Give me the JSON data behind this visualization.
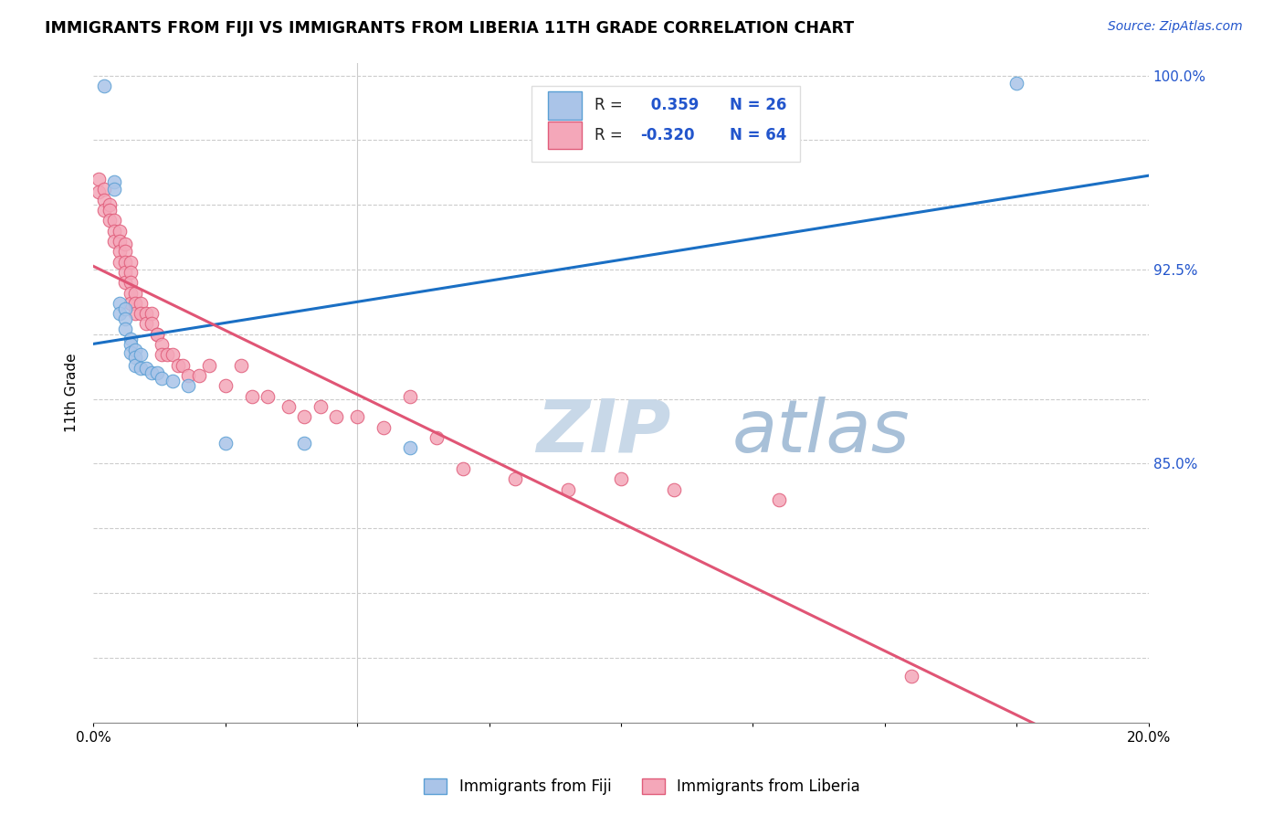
{
  "title": "IMMIGRANTS FROM FIJI VS IMMIGRANTS FROM LIBERIA 11TH GRADE CORRELATION CHART",
  "source": "Source: ZipAtlas.com",
  "ylabel": "11th Grade",
  "xmin": 0.0,
  "xmax": 0.2,
  "ymin": 0.75,
  "ymax": 1.005,
  "yticks": [
    0.775,
    0.8,
    0.825,
    0.85,
    0.875,
    0.9,
    0.925,
    0.95,
    0.975,
    1.0
  ],
  "ytick_labels": [
    "",
    "",
    "",
    "85.0%",
    "",
    "",
    "92.5%",
    "",
    "",
    "100.0%"
  ],
  "xticks": [
    0.0,
    0.025,
    0.05,
    0.075,
    0.1,
    0.125,
    0.15,
    0.175,
    0.2
  ],
  "xtick_labels": [
    "0.0%",
    "",
    "",
    "",
    "",
    "",
    "",
    "",
    "20.0%"
  ],
  "fiji_color": "#aac4e8",
  "liberia_color": "#f4a7b9",
  "fiji_edge_color": "#5a9fd4",
  "liberia_edge_color": "#e05c7a",
  "trend_fiji_color": "#1a6fc4",
  "trend_liberia_color": "#e05575",
  "watermark_color": "#c8d8e8",
  "legend_fiji_label": "Immigrants from Fiji",
  "legend_liberia_label": "Immigrants from Liberia",
  "fiji_R": 0.359,
  "fiji_N": 26,
  "liberia_R": -0.32,
  "liberia_N": 64,
  "fiji_x": [
    0.002,
    0.004,
    0.004,
    0.005,
    0.005,
    0.006,
    0.006,
    0.006,
    0.007,
    0.007,
    0.007,
    0.008,
    0.008,
    0.008,
    0.009,
    0.009,
    0.01,
    0.011,
    0.012,
    0.013,
    0.015,
    0.018,
    0.025,
    0.04,
    0.06,
    0.175
  ],
  "fiji_y": [
    0.996,
    0.959,
    0.956,
    0.912,
    0.908,
    0.91,
    0.906,
    0.902,
    0.898,
    0.896,
    0.893,
    0.894,
    0.891,
    0.888,
    0.892,
    0.887,
    0.887,
    0.885,
    0.885,
    0.883,
    0.882,
    0.88,
    0.858,
    0.858,
    0.856,
    0.997
  ],
  "liberia_x": [
    0.001,
    0.001,
    0.002,
    0.002,
    0.002,
    0.003,
    0.003,
    0.003,
    0.004,
    0.004,
    0.004,
    0.005,
    0.005,
    0.005,
    0.005,
    0.006,
    0.006,
    0.006,
    0.006,
    0.006,
    0.007,
    0.007,
    0.007,
    0.007,
    0.007,
    0.008,
    0.008,
    0.008,
    0.009,
    0.009,
    0.01,
    0.01,
    0.011,
    0.011,
    0.012,
    0.012,
    0.013,
    0.013,
    0.014,
    0.015,
    0.016,
    0.017,
    0.018,
    0.02,
    0.022,
    0.025,
    0.028,
    0.03,
    0.033,
    0.037,
    0.04,
    0.043,
    0.046,
    0.05,
    0.055,
    0.06,
    0.065,
    0.07,
    0.08,
    0.09,
    0.1,
    0.11,
    0.13,
    0.155
  ],
  "liberia_y": [
    0.96,
    0.955,
    0.956,
    0.952,
    0.948,
    0.95,
    0.948,
    0.944,
    0.944,
    0.94,
    0.936,
    0.94,
    0.936,
    0.932,
    0.928,
    0.935,
    0.932,
    0.928,
    0.924,
    0.92,
    0.928,
    0.924,
    0.92,
    0.916,
    0.912,
    0.916,
    0.912,
    0.908,
    0.912,
    0.908,
    0.908,
    0.904,
    0.908,
    0.904,
    0.9,
    0.9,
    0.896,
    0.892,
    0.892,
    0.892,
    0.888,
    0.888,
    0.884,
    0.884,
    0.888,
    0.88,
    0.888,
    0.876,
    0.876,
    0.872,
    0.868,
    0.872,
    0.868,
    0.868,
    0.864,
    0.876,
    0.86,
    0.848,
    0.844,
    0.84,
    0.844,
    0.84,
    0.836,
    0.768
  ]
}
